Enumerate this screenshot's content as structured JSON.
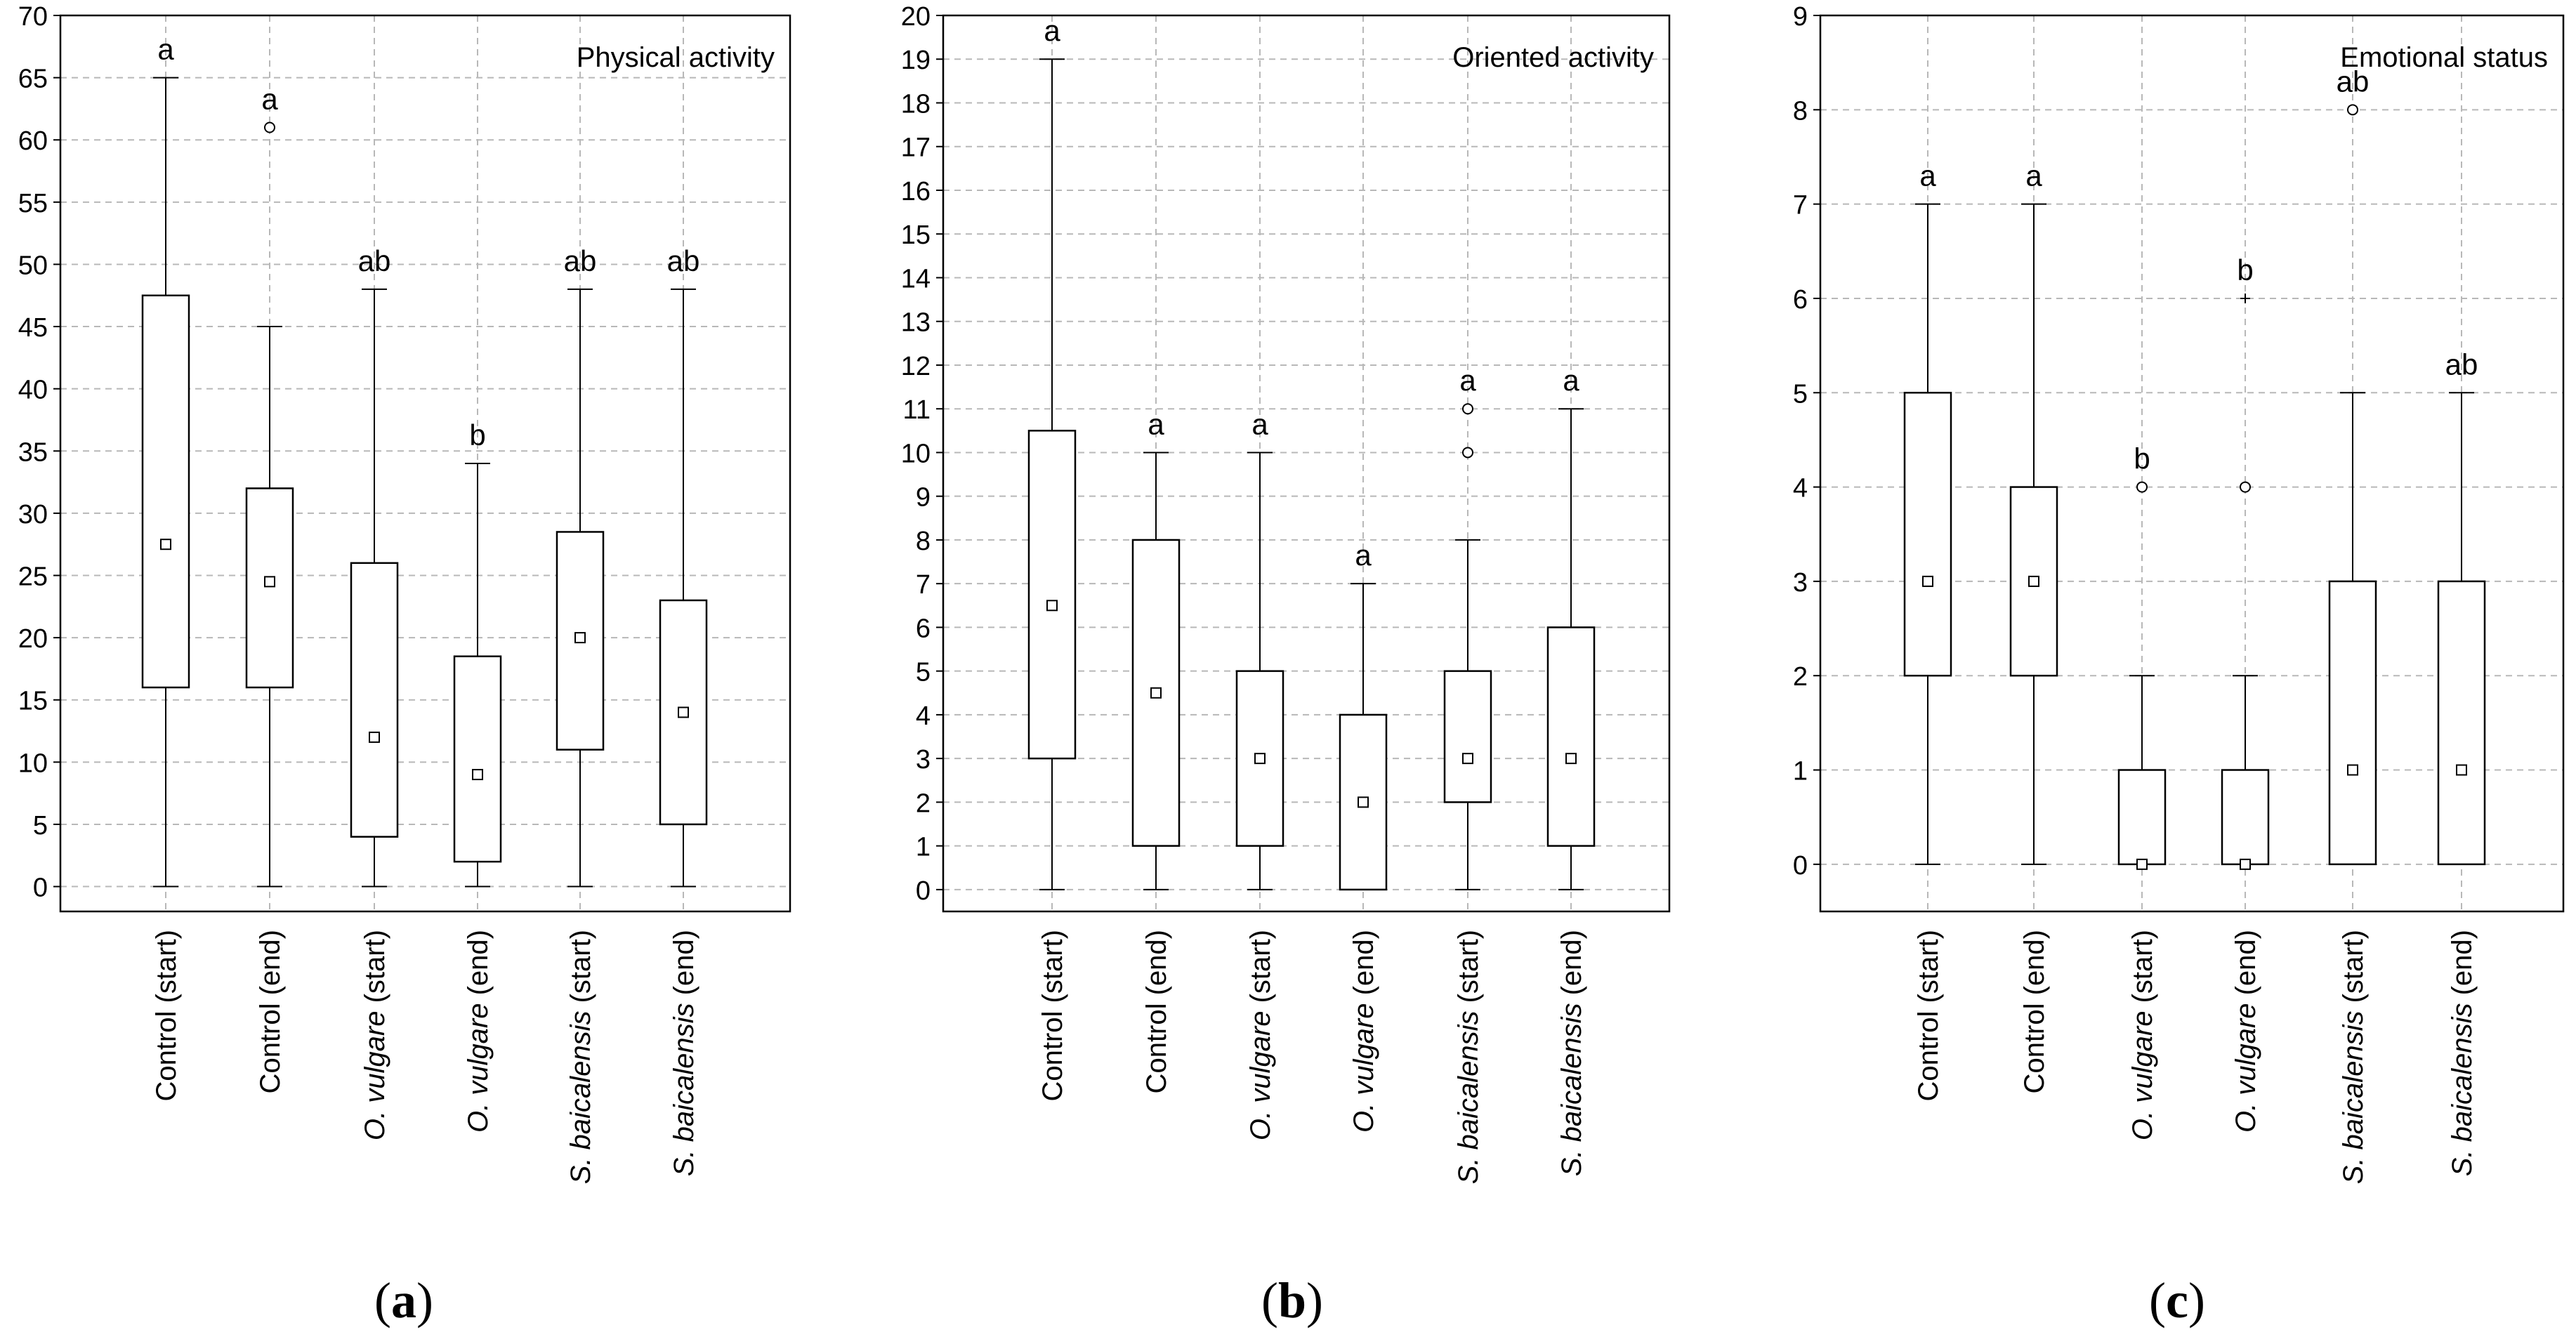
{
  "chart_data": [
    {
      "type": "box",
      "panel": "(a)",
      "panel_letter": "a",
      "title": "Physical activity",
      "ylim": [
        -2,
        70
      ],
      "yticks": [
        0,
        5,
        10,
        15,
        20,
        25,
        30,
        35,
        40,
        45,
        50,
        55,
        60,
        65,
        70
      ],
      "grid": true,
      "categories": [
        {
          "plain": "Control (start)"
        },
        {
          "plain": "Control (end)"
        },
        {
          "italic": "O. vulgare",
          "plain": " (start)"
        },
        {
          "italic": "O. vulgare",
          "plain": " (end)"
        },
        {
          "italic": "S. baicalensis",
          "plain": " (start)"
        },
        {
          "italic": "S. baicalensis",
          "plain": " (end)"
        }
      ],
      "boxes": [
        {
          "median": 27.5,
          "q1": 16,
          "q3": 47.5,
          "min": 0,
          "max": 65,
          "outliers": [],
          "extremes": [],
          "letter": "a"
        },
        {
          "median": 24.5,
          "q1": 16,
          "q3": 32,
          "min": 0,
          "max": 45,
          "outliers": [
            61
          ],
          "extremes": [],
          "letter": "a"
        },
        {
          "median": 12,
          "q1": 4,
          "q3": 26,
          "min": 0,
          "max": 48,
          "outliers": [],
          "extremes": [],
          "letter": "ab"
        },
        {
          "median": 9,
          "q1": 2,
          "q3": 18.5,
          "min": 0,
          "max": 34,
          "outliers": [],
          "extremes": [],
          "letter": "b"
        },
        {
          "median": 20,
          "q1": 11,
          "q3": 28.5,
          "min": 0,
          "max": 48,
          "outliers": [],
          "extremes": [],
          "letter": "ab"
        },
        {
          "median": 14,
          "q1": 5,
          "q3": 23,
          "min": 0,
          "max": 48,
          "outliers": [],
          "extremes": [],
          "letter": "ab"
        }
      ]
    },
    {
      "type": "box",
      "panel": "(b)",
      "panel_letter": "b",
      "title": "Oriented activity",
      "ylim": [
        -0.5,
        20
      ],
      "yticks": [
        0,
        1,
        2,
        3,
        4,
        5,
        6,
        7,
        8,
        9,
        10,
        11,
        12,
        13,
        14,
        15,
        16,
        17,
        18,
        19,
        20
      ],
      "grid": true,
      "categories": [
        {
          "plain": "Control (start)"
        },
        {
          "plain": "Control (end)"
        },
        {
          "italic": "O. vulgare",
          "plain": " (start)"
        },
        {
          "italic": "O. vulgare",
          "plain": " (end)"
        },
        {
          "italic": "S. baicalensis",
          "plain": " (start)"
        },
        {
          "italic": "S. baicalensis",
          "plain": " (end)"
        }
      ],
      "boxes": [
        {
          "median": 6.5,
          "q1": 3,
          "q3": 10.5,
          "min": 0,
          "max": 19,
          "outliers": [],
          "extremes": [],
          "letter": "a"
        },
        {
          "median": 4.5,
          "q1": 1,
          "q3": 8,
          "min": 0,
          "max": 10,
          "outliers": [],
          "extremes": [],
          "letter": "a"
        },
        {
          "median": 3,
          "q1": 1,
          "q3": 5,
          "min": 0,
          "max": 10,
          "outliers": [],
          "extremes": [],
          "letter": "a"
        },
        {
          "median": 2,
          "q1": 0,
          "q3": 4,
          "min": 0,
          "max": 7,
          "outliers": [],
          "extremes": [],
          "letter": "a"
        },
        {
          "median": 3,
          "q1": 2,
          "q3": 5,
          "min": 0,
          "max": 8,
          "outliers": [
            10,
            11
          ],
          "extremes": [],
          "letter": "a"
        },
        {
          "median": 3,
          "q1": 1,
          "q3": 6,
          "min": 0,
          "max": 11,
          "outliers": [],
          "extremes": [],
          "letter": "a"
        }
      ]
    },
    {
      "type": "box",
      "panel": "(c)",
      "panel_letter": "c",
      "title": "Emotional status",
      "ylim": [
        -0.5,
        9
      ],
      "yticks": [
        0,
        1,
        2,
        3,
        4,
        5,
        6,
        7,
        8,
        9
      ],
      "grid": true,
      "categories": [
        {
          "plain": "Control (start)"
        },
        {
          "plain": "Control (end)"
        },
        {
          "italic": "O. vulgare",
          "plain": " (start)"
        },
        {
          "italic": "O. vulgare",
          "plain": " (end)"
        },
        {
          "italic": "S. baicalensis",
          "plain": " (start)"
        },
        {
          "italic": "S. baicalensis",
          "plain": " (end)"
        }
      ],
      "boxes": [
        {
          "median": 3,
          "q1": 2,
          "q3": 5,
          "min": 0,
          "max": 7,
          "outliers": [],
          "extremes": [],
          "letter": "a"
        },
        {
          "median": 3,
          "q1": 2,
          "q3": 4,
          "min": 0,
          "max": 7,
          "outliers": [],
          "extremes": [],
          "letter": "a"
        },
        {
          "median": 0,
          "q1": 0,
          "q3": 1,
          "min": 0,
          "max": 2,
          "outliers": [
            4
          ],
          "extremes": [],
          "letter": "b"
        },
        {
          "median": 0,
          "q1": 0,
          "q3": 1,
          "min": 0,
          "max": 2,
          "outliers": [
            4
          ],
          "extremes": [
            6
          ],
          "letter": "b"
        },
        {
          "median": 1,
          "q1": 0,
          "q3": 3,
          "min": 0,
          "max": 5,
          "outliers": [
            8
          ],
          "extremes": [],
          "letter": "ab"
        },
        {
          "median": 1,
          "q1": 0,
          "q3": 3,
          "min": 0,
          "max": 5,
          "outliers": [],
          "extremes": [],
          "letter": "ab"
        }
      ]
    }
  ]
}
